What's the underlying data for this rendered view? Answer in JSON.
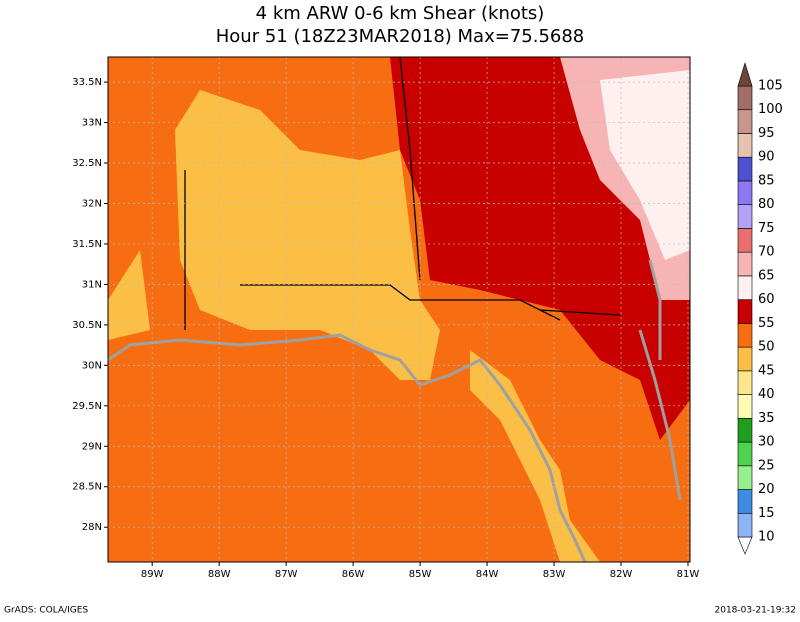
{
  "map": {
    "title": "4 km ARW 0-6 km Shear (knots)",
    "subtitle": "Hour 51 (18Z23MAR2018) Max=75.5688",
    "xlim": [
      -89.66,
      -80.97
    ],
    "ylim": [
      27.57,
      33.81
    ],
    "xticks": [
      {
        "value": -89,
        "label": "89W"
      },
      {
        "value": -88,
        "label": "88W"
      },
      {
        "value": -87,
        "label": "87W"
      },
      {
        "value": -86,
        "label": "86W"
      },
      {
        "value": -85,
        "label": "85W"
      },
      {
        "value": -84,
        "label": "84W"
      },
      {
        "value": -83,
        "label": "83W"
      },
      {
        "value": -82,
        "label": "82W"
      },
      {
        "value": -81,
        "label": "81W"
      }
    ],
    "yticks": [
      {
        "value": 28,
        "label": "28N"
      },
      {
        "value": 28.5,
        "label": "28.5N"
      },
      {
        "value": 29,
        "label": "29N"
      },
      {
        "value": 29.5,
        "label": "29.5N"
      },
      {
        "value": 30,
        "label": "30N"
      },
      {
        "value": 30.5,
        "label": "30.5N"
      },
      {
        "value": 31,
        "label": "31N"
      },
      {
        "value": 31.5,
        "label": "31.5N"
      },
      {
        "value": 32,
        "label": "32N"
      },
      {
        "value": 32.5,
        "label": "32.5N"
      },
      {
        "value": 33,
        "label": "33N"
      },
      {
        "value": 33.5,
        "label": "33.5N"
      }
    ],
    "colorbar": {
      "levels": [
        10,
        15,
        20,
        25,
        30,
        35,
        40,
        45,
        50,
        55,
        60,
        65,
        70,
        75,
        80,
        85,
        90,
        95,
        100,
        105
      ],
      "colors": [
        "#ffffff",
        "#8cb4f5",
        "#3c8ce6",
        "#96f08c",
        "#50d250",
        "#1ea01e",
        "#fffab4",
        "#fde68c",
        "#fbbf45",
        "#f76d12",
        "#c80000",
        "#fff0f0",
        "#f7b4b4",
        "#eb6e6e",
        "#b4a0f5",
        "#8c78f0",
        "#5050d2",
        "#e6c3af",
        "#c8968c",
        "#a06e64",
        "#6e4637"
      ]
    }
  },
  "footer": {
    "left": "GrADS: COLA/IGES",
    "right": "2018-03-21-19:32"
  }
}
